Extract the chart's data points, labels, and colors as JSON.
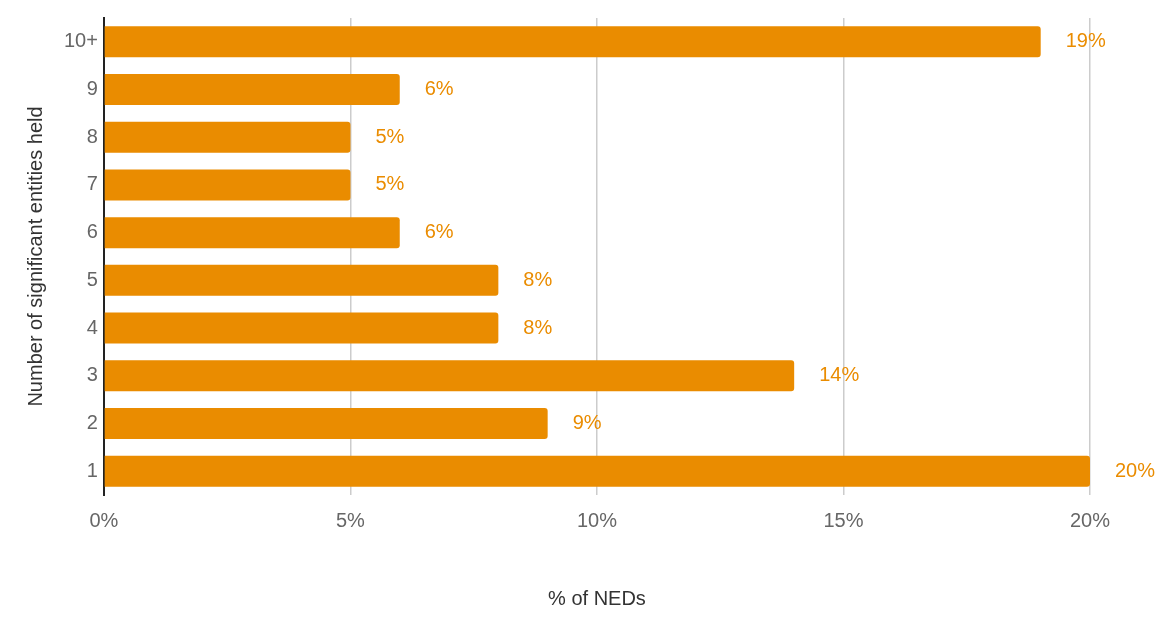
{
  "chart_data": {
    "type": "bar",
    "orientation": "horizontal",
    "xlabel": "% of NEDs",
    "ylabel": "Number of significant entities held",
    "categories": [
      "10+",
      "9",
      "8",
      "7",
      "6",
      "5",
      "4",
      "3",
      "2",
      "1"
    ],
    "values": [
      19,
      6,
      5,
      5,
      6,
      8,
      8,
      14,
      9,
      20
    ],
    "value_labels": [
      "19%",
      "6%",
      "5%",
      "5%",
      "6%",
      "8%",
      "8%",
      "14%",
      "9%",
      "20%"
    ],
    "color": "#ea8c00",
    "xlim": [
      0,
      20
    ],
    "xticks": [
      {
        "value": 0,
        "label": "0%"
      },
      {
        "value": 5,
        "label": "5%"
      },
      {
        "value": 10,
        "label": "10%"
      },
      {
        "value": 15,
        "label": "15%"
      },
      {
        "value": 20,
        "label": "20%"
      }
    ],
    "grid": "x",
    "legend": false
  }
}
